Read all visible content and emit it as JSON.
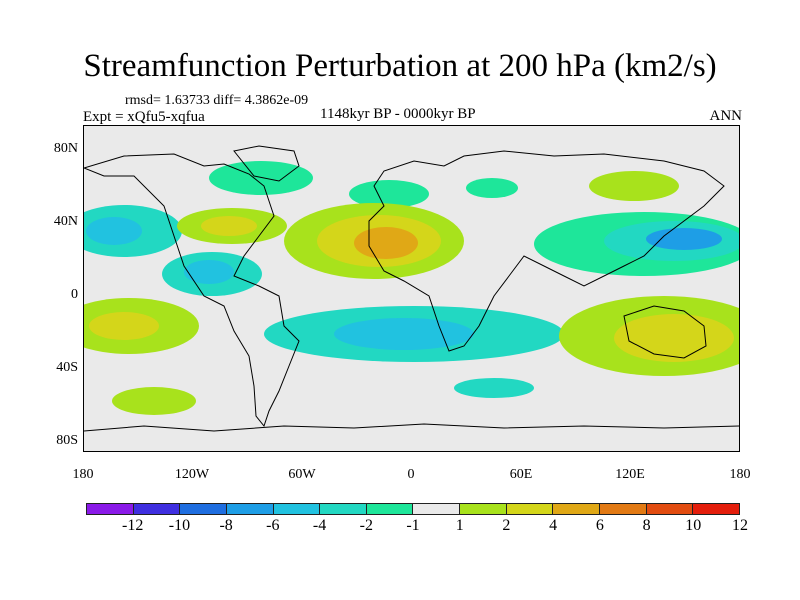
{
  "title": "Streamfunction Perturbation at 200 hPa (km2/s)",
  "stats": "rmsd= 1.63733 diff= 4.3862e-09",
  "expt": "Expt = xQfu5-xqfua",
  "period": "1148kyr BP - 0000kyr BP",
  "season": "ANN",
  "lat_labels": [
    "80N",
    "40N",
    "0",
    "40S",
    "80S"
  ],
  "lon_labels": [
    "180",
    "120W",
    "60W",
    "0",
    "60E",
    "120E",
    "180"
  ],
  "colorbar": {
    "labels": [
      "-12",
      "-10",
      "-8",
      "-6",
      "-4",
      "-2",
      "-1",
      "1",
      "2",
      "4",
      "6",
      "8",
      "10",
      "12"
    ],
    "colors": [
      "#8a1ae8",
      "#3f2fe0",
      "#1f6ee0",
      "#1e9ee6",
      "#21c2e0",
      "#22d8c2",
      "#1ee69a",
      "#eaeaea",
      "#a8e21c",
      "#d4d61a",
      "#e0a816",
      "#e27a14",
      "#e24c10",
      "#e41e0c"
    ]
  }
}
